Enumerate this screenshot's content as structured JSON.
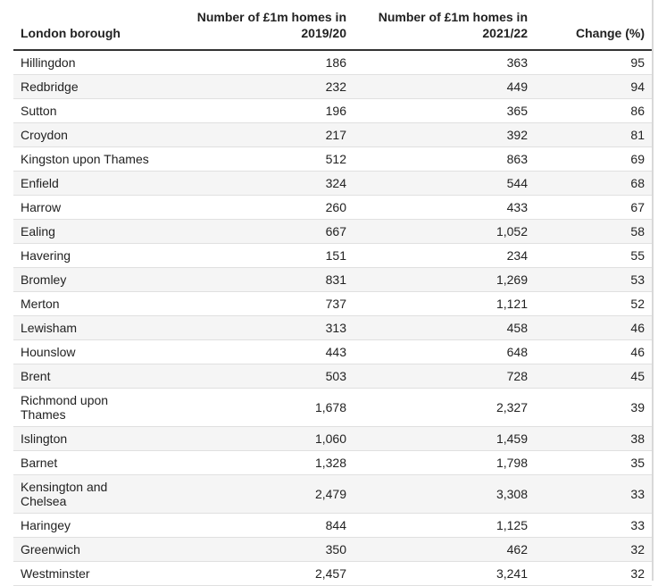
{
  "table": {
    "headers": [
      "London borough",
      "Number of £1m homes in 2019/20",
      "Number of £1m homes in 2021/22",
      "Change (%)"
    ],
    "rows": [
      [
        "Hillingdon",
        "186",
        "363",
        "95"
      ],
      [
        "Redbridge",
        "232",
        "449",
        "94"
      ],
      [
        "Sutton",
        "196",
        "365",
        "86"
      ],
      [
        "Croydon",
        "217",
        "392",
        "81"
      ],
      [
        "Kingston upon Thames",
        "512",
        "863",
        "69"
      ],
      [
        "Enfield",
        "324",
        "544",
        "68"
      ],
      [
        "Harrow",
        "260",
        "433",
        "67"
      ],
      [
        "Ealing",
        "667",
        "1,052",
        "58"
      ],
      [
        "Havering",
        "151",
        "234",
        "55"
      ],
      [
        "Bromley",
        "831",
        "1,269",
        "53"
      ],
      [
        "Merton",
        "737",
        "1,121",
        "52"
      ],
      [
        "Lewisham",
        "313",
        "458",
        "46"
      ],
      [
        "Hounslow",
        "443",
        "648",
        "46"
      ],
      [
        "Brent",
        "503",
        "728",
        "45"
      ],
      [
        "Richmond upon Thames",
        "1,678",
        "2,327",
        "39"
      ],
      [
        "Islington",
        "1,060",
        "1,459",
        "38"
      ],
      [
        "Barnet",
        "1,328",
        "1,798",
        "35"
      ],
      [
        "Kensington and Chelsea",
        "2,479",
        "3,308",
        "33"
      ],
      [
        "Haringey",
        "844",
        "1,125",
        "33"
      ],
      [
        "Greenwich",
        "350",
        "462",
        "32"
      ],
      [
        "Westminster",
        "2,457",
        "3,241",
        "32"
      ]
    ]
  }
}
